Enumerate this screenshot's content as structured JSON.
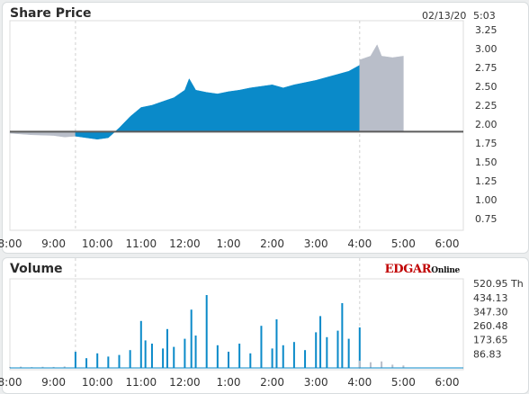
{
  "price_panel": {
    "title": "Share Price",
    "date": "02/13/20",
    "time": "5:03"
  },
  "volume_panel": {
    "title": "Volume",
    "brand_main": "EDGAR",
    "brand_sub": "Online"
  },
  "colors": {
    "regular_session": "#0a8ac9",
    "extended_hours": "#b9bec9",
    "baseline": "#5c5c5c",
    "gridline": "#d0d0d0"
  },
  "chart_data": [
    {
      "type": "area",
      "title": "Share Price",
      "x_ticks": [
        "8:00",
        "9:00",
        "10:00",
        "11:00",
        "12:00",
        "1:00",
        "2:00",
        "3:00",
        "4:00",
        "5:00",
        "6:00"
      ],
      "y_ticks": [
        "0.75",
        "1.00",
        "1.25",
        "1.50",
        "1.75",
        "2.00",
        "2.25",
        "2.50",
        "2.75",
        "3.00",
        "3.25"
      ],
      "ylim": [
        0.75,
        3.25
      ],
      "baseline": 1.9,
      "grid": "vertical dashed at 9:30 and 4:00",
      "series": [
        {
          "session": "pre-market",
          "x": [
            8.0,
            8.5,
            9.0,
            9.25,
            9.5
          ],
          "values": [
            1.88,
            1.86,
            1.85,
            1.83,
            1.84
          ]
        },
        {
          "session": "regular",
          "x": [
            9.5,
            9.75,
            10.0,
            10.25,
            10.5,
            10.75,
            11.0,
            11.25,
            11.5,
            11.75,
            12.0,
            12.1,
            12.25,
            12.5,
            12.75,
            13.0,
            13.25,
            13.5,
            13.75,
            14.0,
            14.25,
            14.5,
            14.75,
            15.0,
            15.25,
            15.5,
            15.75,
            16.0
          ],
          "values": [
            1.84,
            1.82,
            1.8,
            1.82,
            1.95,
            2.1,
            2.22,
            2.25,
            2.3,
            2.35,
            2.45,
            2.6,
            2.45,
            2.42,
            2.4,
            2.43,
            2.45,
            2.48,
            2.5,
            2.52,
            2.48,
            2.52,
            2.55,
            2.58,
            2.62,
            2.66,
            2.7,
            2.78
          ]
        },
        {
          "session": "after-hours",
          "x": [
            16.0,
            16.25,
            16.4,
            16.5,
            16.75,
            17.0
          ],
          "values": [
            2.85,
            2.9,
            3.05,
            2.9,
            2.88,
            2.9
          ]
        }
      ]
    },
    {
      "type": "bar",
      "title": "Volume",
      "x_ticks": [
        "8:00",
        "9:00",
        "10:00",
        "11:00",
        "12:00",
        "1:00",
        "2:00",
        "3:00",
        "4:00",
        "5:00",
        "6:00"
      ],
      "y_ticks": [
        "86.83",
        "173.65",
        "260.48",
        "347.30",
        "434.13",
        "520.95 Th"
      ],
      "ylim": [
        0,
        520.95
      ],
      "unit": "Th",
      "series": [
        {
          "session": "pre-market",
          "x": [
            8.0,
            8.25,
            8.5,
            8.75,
            9.0,
            9.25
          ],
          "values": [
            6,
            8,
            5,
            7,
            6,
            9
          ]
        },
        {
          "session": "regular",
          "x": [
            9.5,
            9.75,
            10.0,
            10.25,
            10.5,
            10.75,
            11.0,
            11.1,
            11.25,
            11.5,
            11.6,
            11.75,
            12.0,
            12.15,
            12.25,
            12.5,
            12.75,
            13.0,
            13.25,
            13.5,
            13.75,
            14.0,
            14.1,
            14.25,
            14.5,
            14.75,
            15.0,
            15.1,
            15.25,
            15.5,
            15.6,
            15.75,
            16.0
          ],
          "values": [
            100,
            60,
            90,
            70,
            80,
            110,
            290,
            170,
            150,
            120,
            240,
            130,
            180,
            360,
            200,
            450,
            140,
            100,
            150,
            90,
            260,
            120,
            300,
            140,
            160,
            110,
            220,
            320,
            190,
            230,
            400,
            180,
            250
          ]
        },
        {
          "session": "after-hours",
          "x": [
            16.0,
            16.25,
            16.5,
            16.75,
            17.0
          ],
          "values": [
            45,
            35,
            40,
            20,
            15
          ]
        }
      ]
    }
  ]
}
